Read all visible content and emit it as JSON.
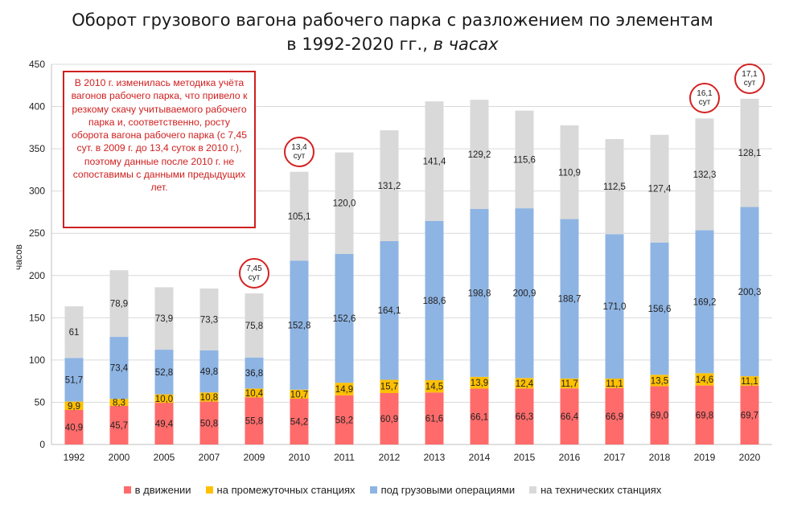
{
  "chart_data": {
    "type": "bar",
    "stacked": true,
    "title_line1": "Оборот грузового вагона рабочего парка с разложением по элементам",
    "title_line2": "в 1992-2020 гг., ",
    "title_em": "в часах",
    "ylabel": "часов",
    "ylim": [
      0,
      450
    ],
    "yticks": [
      "0",
      "50",
      "100",
      "150",
      "200",
      "250",
      "300",
      "350",
      "400",
      "450"
    ],
    "grid": true,
    "categories": [
      "1992",
      "2000",
      "2005",
      "2007",
      "2009",
      "2010",
      "2011",
      "2012",
      "2013",
      "2014",
      "2015",
      "2016",
      "2017",
      "2018",
      "2019",
      "2020"
    ],
    "series": [
      {
        "name": "в движении",
        "color": "#ff6b6b",
        "values": [
          40.9,
          45.7,
          49.4,
          50.8,
          55.8,
          54.2,
          58.2,
          60.9,
          61.6,
          66.1,
          66.3,
          66.4,
          66.9,
          69.0,
          69.8,
          69.7
        ],
        "labels": [
          "40,9",
          "45,7",
          "49,4",
          "50,8",
          "55,8",
          "54,2",
          "58,2",
          "60,9",
          "61,6",
          "66,1",
          "66,3",
          "66,4",
          "66,9",
          "69,0",
          "69,8",
          "69,7"
        ]
      },
      {
        "name": "на промежуточных станциях",
        "color": "#ffc000",
        "values": [
          9.9,
          8.3,
          10.0,
          10.8,
          10.4,
          10.7,
          14.9,
          15.7,
          14.5,
          13.9,
          12.4,
          11.7,
          11.1,
          13.5,
          14.6,
          11.1
        ],
        "labels": [
          "9,9",
          "8,3",
          "10,0",
          "10,8",
          "10,4",
          "10,7",
          "14,9",
          "15,7",
          "14,5",
          "13,9",
          "12,4",
          "11,7",
          "11,1",
          "13,5",
          "14,6",
          "11,1"
        ]
      },
      {
        "name": "под грузовыми операциями",
        "color": "#8eb4e3",
        "values": [
          51.7,
          73.4,
          52.8,
          49.8,
          36.8,
          152.8,
          152.6,
          164.1,
          188.6,
          198.8,
          200.9,
          188.7,
          171.0,
          156.6,
          169.2,
          200.3
        ],
        "labels": [
          "51,7",
          "73,4",
          "52,8",
          "49,8",
          "36,8",
          "152,8",
          "152,6",
          "164,1",
          "188,6",
          "198,8",
          "200,9",
          "188,7",
          "171,0",
          "156,6",
          "169,2",
          "200,3"
        ]
      },
      {
        "name": "на технических станциях",
        "color": "#d9d9d9",
        "values": [
          61,
          78.9,
          73.9,
          73.3,
          75.8,
          105.1,
          120.0,
          131.2,
          141.4,
          129.2,
          115.6,
          110.9,
          112.5,
          127.4,
          132.3,
          128.1
        ],
        "labels": [
          "61",
          "78,9",
          "73,9",
          "73,3",
          "75,8",
          "105,1",
          "120,0",
          "131,2",
          "141,4",
          "129,2",
          "115,6",
          "110,9",
          "112,5",
          "127,4",
          "132,3",
          "128,1"
        ]
      }
    ],
    "legend_position": "bottom",
    "note": "В 2010 г. изменилась методика учёта вагонов рабочего парка, что привело к резкому скачу учитываемого рабочего парка и, соответственно, росту оборота вагона рабочего парка (с 7,45 сут. в 2009 г. до 13,4 суток в 2010 г.), поэтому данные после 2010 г.  не сопоставимы с данными предыдущих лет.",
    "callouts": [
      {
        "category": "2009",
        "value": "7,45",
        "unit": "сут"
      },
      {
        "category": "2010",
        "value": "13,4",
        "unit": "сут"
      },
      {
        "category": "2019",
        "value": "16,1",
        "unit": "сут"
      },
      {
        "category": "2020",
        "value": "17,1",
        "unit": "сут"
      }
    ]
  }
}
